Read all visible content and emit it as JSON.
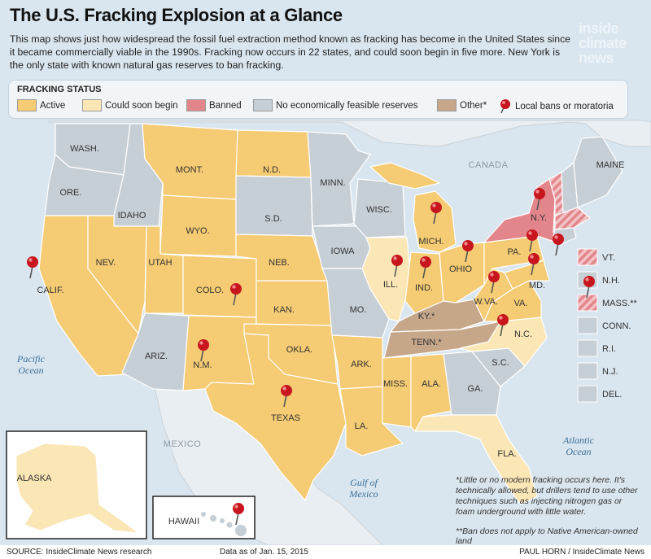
{
  "title": "The U.S. Fracking Explosion at a Glance",
  "subtitle": "This map shows just how widespread the fossil fuel extraction method known as fracking has become in the United States since it became commercially viable in the 1990s. Fracking now occurs in 22 states, and could soon begin in five more. New York is the only state with known natural gas reserves to ban fracking.",
  "logo": [
    "inside",
    "climate",
    "news"
  ],
  "legend": {
    "title": "FRACKING STATUS",
    "items": [
      {
        "label": "Active",
        "color": "#f5cb73"
      },
      {
        "label": "Could soon begin",
        "color": "#fbe6b6"
      },
      {
        "label": "Banned",
        "color": "#e3868c"
      },
      {
        "label": "No economically feasible reserves",
        "color": "#c7cfd6"
      },
      {
        "label": "Other*",
        "color": "#c7a78a"
      },
      {
        "label": "Local bans or moratoria",
        "color": "#c8161e"
      }
    ]
  },
  "colors": {
    "active": "#f5cb73",
    "soon": "#fbe6b6",
    "banned": "#e3868c",
    "none": "#c7cfd6",
    "other": "#c7a78a",
    "pin": "#c8161e",
    "water": "#d9e6ef"
  },
  "states": {
    "wash": "WASH.",
    "ore": "ORE.",
    "calif": "CALIF.",
    "idaho": "IDAHO",
    "nev": "NEV.",
    "mont": "MONT.",
    "wyo": "WYO.",
    "utah": "UTAH",
    "ariz": "ARIZ.",
    "colo": "COLO.",
    "nm": "N.M.",
    "nd": "N.D.",
    "sd": "S.D.",
    "neb": "NEB.",
    "kan": "KAN.",
    "okla": "OKLA.",
    "texas": "TEXAS",
    "minn": "MINN.",
    "iowa": "IOWA",
    "mo": "MO.",
    "ark": "ARK.",
    "la": "LA.",
    "wisc": "WISC.",
    "ill": "ILL.",
    "mich": "MICH.",
    "ind": "IND.",
    "ohio": "OHIO",
    "ky": "KY.*",
    "tenn": "TENN.*",
    "miss": "MISS.",
    "ala": "ALA.",
    "ga": "GA.",
    "fla": "FLA.",
    "sc": "S.C.",
    "nc": "N.C.",
    "va": "VA.",
    "wva": "W.VA.",
    "pa": "PA.",
    "ny": "N.Y.",
    "maine": "MAINE",
    "md": "MD.",
    "alaska": "ALASKA",
    "hawaii": "HAWAII"
  },
  "small_states": [
    {
      "label": "VT.",
      "status": "banned-hatch"
    },
    {
      "label": "N.H.",
      "status": "none"
    },
    {
      "label": "MASS.**",
      "status": "banned-hatch"
    },
    {
      "label": "CONN.",
      "status": "none"
    },
    {
      "label": "R.I.",
      "status": "none"
    },
    {
      "label": "N.J.",
      "status": "none"
    },
    {
      "label": "DEL.",
      "status": "none"
    }
  ],
  "water": {
    "pacific": [
      "Pacific",
      "Ocean"
    ],
    "atlantic": [
      "Atlantic",
      "Ocean"
    ],
    "gulf": [
      "Gulf of",
      "Mexico"
    ]
  },
  "countries": {
    "canada": "CANADA",
    "mexico": "MEXICO"
  },
  "footnote1": "*Little or no modern fracking occurs here. It's technically allowed, but drillers tend to use other techniques such as injecting nitrogen gas or foam underground with little water.",
  "footnote2": "**Ban does not apply to Native American-owned land",
  "footer": {
    "source": "SOURCE: InsideClimate News research",
    "asof": "Data as of Jan. 15, 2015",
    "credit": "PAUL HORN / InsideClimate News"
  }
}
